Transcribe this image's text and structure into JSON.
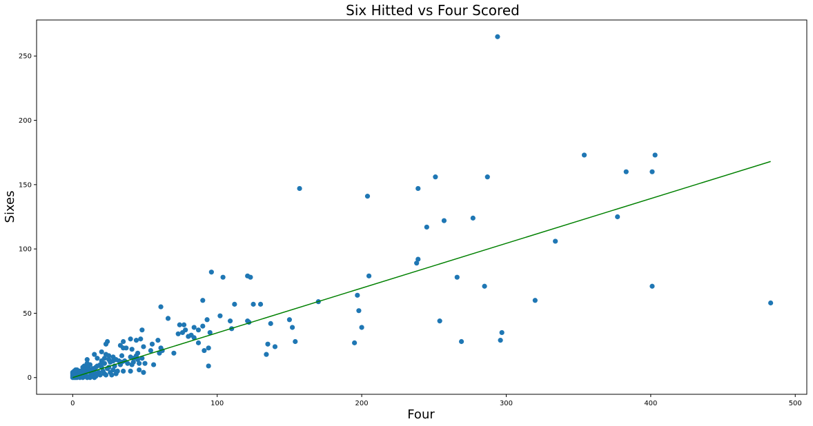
{
  "chart_data": {
    "type": "scatter",
    "title": "Six Hitted vs Four Scored",
    "xlabel": "Four",
    "ylabel": "Sixes",
    "xlim": [
      -25,
      508
    ],
    "ylim": [
      -13,
      278
    ],
    "x_ticks": [
      0,
      100,
      200,
      300,
      400,
      500
    ],
    "y_ticks": [
      0,
      50,
      100,
      150,
      200,
      250
    ],
    "grid": false,
    "legend": "none",
    "colors": {
      "points": "#1f77b4",
      "fit_line": "#008000"
    },
    "fit_line": {
      "x": [
        0,
        483
      ],
      "y": [
        0,
        168
      ]
    },
    "points": [
      [
        294,
        265
      ],
      [
        354,
        173
      ],
      [
        403,
        173
      ],
      [
        383,
        160
      ],
      [
        401,
        160
      ],
      [
        251,
        156
      ],
      [
        287,
        156
      ],
      [
        157,
        147
      ],
      [
        239,
        147
      ],
      [
        204,
        141
      ],
      [
        377,
        125
      ],
      [
        277,
        124
      ],
      [
        257,
        122
      ],
      [
        245,
        117
      ],
      [
        334,
        106
      ],
      [
        238,
        89
      ],
      [
        239,
        92
      ],
      [
        96,
        82
      ],
      [
        104,
        78
      ],
      [
        121,
        79
      ],
      [
        123,
        78
      ],
      [
        205,
        79
      ],
      [
        266,
        78
      ],
      [
        285,
        71
      ],
      [
        401,
        71
      ],
      [
        197,
        64
      ],
      [
        320,
        60
      ],
      [
        90,
        60
      ],
      [
        170,
        59
      ],
      [
        483,
        58
      ],
      [
        112,
        57
      ],
      [
        125,
        57
      ],
      [
        130,
        57
      ],
      [
        61,
        55
      ],
      [
        198,
        52
      ],
      [
        102,
        48
      ],
      [
        66,
        46
      ],
      [
        93,
        45
      ],
      [
        109,
        44
      ],
      [
        121,
        44
      ],
      [
        122,
        43
      ],
      [
        150,
        45
      ],
      [
        254,
        44
      ],
      [
        137,
        42
      ],
      [
        74,
        41
      ],
      [
        77,
        41
      ],
      [
        152,
        39
      ],
      [
        200,
        39
      ],
      [
        84,
        39
      ],
      [
        110,
        38
      ],
      [
        90,
        40
      ],
      [
        78,
        37
      ],
      [
        87,
        37
      ],
      [
        48,
        37
      ],
      [
        76,
        35
      ],
      [
        95,
        35
      ],
      [
        73,
        34
      ],
      [
        80,
        32
      ],
      [
        82,
        33
      ],
      [
        84,
        31
      ],
      [
        297,
        35
      ],
      [
        296,
        29
      ],
      [
        269,
        28
      ],
      [
        195,
        27
      ],
      [
        154,
        28
      ],
      [
        135,
        26
      ],
      [
        140,
        24
      ],
      [
        134,
        18
      ],
      [
        94,
        23
      ],
      [
        91,
        21
      ],
      [
        94,
        9
      ],
      [
        87,
        27
      ],
      [
        40,
        30
      ],
      [
        44,
        29
      ],
      [
        47,
        30
      ],
      [
        59,
        29
      ],
      [
        35,
        28
      ],
      [
        24,
        28
      ],
      [
        33,
        25
      ],
      [
        23,
        26
      ],
      [
        37,
        23
      ],
      [
        35,
        23
      ],
      [
        55,
        26
      ],
      [
        61,
        23
      ],
      [
        49,
        24
      ],
      [
        41,
        22
      ],
      [
        54,
        21
      ],
      [
        62,
        21
      ],
      [
        60,
        19
      ],
      [
        70,
        19
      ],
      [
        45,
        19
      ],
      [
        20,
        20
      ],
      [
        15,
        18
      ],
      [
        23,
        18
      ],
      [
        25,
        17
      ],
      [
        28,
        16
      ],
      [
        34,
        17
      ],
      [
        44,
        17
      ],
      [
        48,
        15
      ],
      [
        40,
        16
      ],
      [
        17,
        15
      ],
      [
        22,
        15
      ],
      [
        25,
        14
      ],
      [
        10,
        14
      ],
      [
        20,
        13
      ],
      [
        28,
        13
      ],
      [
        32,
        13
      ],
      [
        36,
        13
      ],
      [
        42,
        12
      ],
      [
        46,
        11
      ],
      [
        50,
        11
      ],
      [
        56,
        10
      ],
      [
        41,
        10
      ],
      [
        33,
        10
      ],
      [
        29,
        9
      ],
      [
        25,
        8
      ],
      [
        20,
        8
      ],
      [
        17,
        9
      ],
      [
        12,
        10
      ],
      [
        10,
        11
      ],
      [
        14,
        7
      ],
      [
        24,
        7
      ],
      [
        28,
        6
      ],
      [
        35,
        5
      ],
      [
        40,
        5
      ],
      [
        46,
        6
      ],
      [
        49,
        4
      ],
      [
        30,
        3
      ],
      [
        26,
        4
      ],
      [
        22,
        3
      ],
      [
        19,
        2
      ],
      [
        16,
        1
      ],
      [
        13,
        3
      ],
      [
        11,
        5
      ],
      [
        9,
        7
      ],
      [
        8,
        9
      ],
      [
        7,
        5
      ],
      [
        6,
        3
      ],
      [
        5,
        2
      ],
      [
        4,
        4
      ],
      [
        3,
        1
      ],
      [
        2,
        3
      ],
      [
        1,
        2
      ],
      [
        0,
        0
      ],
      [
        1,
        0
      ],
      [
        2,
        0
      ],
      [
        3,
        0
      ],
      [
        4,
        1
      ],
      [
        5,
        0
      ],
      [
        6,
        1
      ],
      [
        7,
        0
      ],
      [
        8,
        2
      ],
      [
        9,
        1
      ],
      [
        10,
        0
      ],
      [
        11,
        1
      ],
      [
        12,
        0
      ],
      [
        13,
        1
      ],
      [
        14,
        2
      ],
      [
        15,
        0
      ],
      [
        16,
        3
      ],
      [
        18,
        4
      ],
      [
        21,
        5
      ],
      [
        23,
        2
      ],
      [
        27,
        2
      ],
      [
        31,
        5
      ],
      [
        0,
        2
      ],
      [
        0,
        4
      ],
      [
        1,
        5
      ],
      [
        2,
        6
      ],
      [
        3,
        6
      ],
      [
        5,
        5
      ],
      [
        7,
        8
      ],
      [
        9,
        4
      ],
      [
        11,
        7
      ],
      [
        13,
        5
      ],
      [
        15,
        6
      ],
      [
        0,
        1
      ],
      [
        0,
        3
      ],
      [
        1,
        1
      ],
      [
        2,
        1
      ],
      [
        4,
        2
      ],
      [
        6,
        5
      ],
      [
        8,
        6
      ],
      [
        10,
        8
      ],
      [
        12,
        6
      ],
      [
        14,
        4
      ],
      [
        16,
        8
      ],
      [
        19,
        10
      ],
      [
        22,
        11
      ],
      [
        26,
        12
      ],
      [
        30,
        14
      ],
      [
        34,
        12
      ],
      [
        38,
        11
      ],
      [
        42,
        15
      ],
      [
        45,
        14
      ]
    ]
  }
}
